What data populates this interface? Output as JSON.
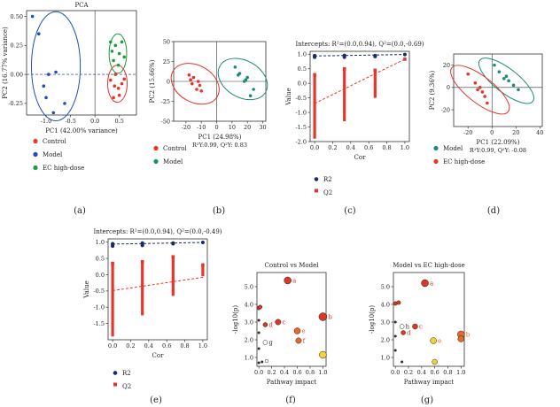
{
  "figure": {
    "panel_labels": [
      "(a)",
      "(b)",
      "(c)",
      "(d)",
      "(e)",
      "(f)",
      "(g)"
    ]
  },
  "colors": {
    "control": "#e8342a",
    "model_a": "#1f4fbf",
    "ec": "#1f9a3a",
    "model_teal": "#1e8a78",
    "r2": "#1a2a6e",
    "q2": "#e8342a",
    "node_orange": "#e86a2a",
    "node_yellow": "#f2d23c",
    "node_red": "#d83a24"
  },
  "chart_data": [
    {
      "panel": "a",
      "type": "scatter",
      "title": "PCA",
      "xlabel": "PC1 (42.00% variance)",
      "ylabel": "PC2 (16.77% variance)",
      "xlim": [
        -1.4,
        0.85
      ],
      "ylim": [
        -0.35,
        0.55
      ],
      "xticks": [
        -1.0,
        -0.5,
        0.0,
        0.5
      ],
      "xtick_labels": [
        "-1.0",
        "-0.5",
        "0.0",
        "0.5"
      ],
      "yticks": [
        -0.25,
        0.0,
        0.25,
        0.5
      ],
      "ytick_labels": [
        "-0.25",
        "0.00",
        "0.25",
        "0.50"
      ],
      "legend": [
        "Control",
        "Model",
        "EC high-dose"
      ],
      "series": [
        {
          "name": "Control",
          "color": "control",
          "points": [
            [
              0.32,
              -0.05
            ],
            [
              0.4,
              -0.1
            ],
            [
              0.48,
              -0.12
            ],
            [
              0.55,
              -0.08
            ],
            [
              0.38,
              -0.2
            ],
            [
              0.5,
              -0.18
            ],
            [
              0.6,
              -0.04
            ],
            [
              0.42,
              0.0
            ]
          ],
          "ellipse": {
            "cx": 0.46,
            "cy": -0.08,
            "rx": 0.2,
            "ry": 0.16
          }
        },
        {
          "name": "Model",
          "color": "model_a",
          "points": [
            [
              -1.28,
              0.5
            ],
            [
              -1.15,
              0.35
            ],
            [
              -0.8,
              0.02
            ],
            [
              -0.95,
              0.0
            ],
            [
              -1.0,
              -0.2
            ],
            [
              -0.62,
              -0.25
            ],
            [
              -1.05,
              -0.1
            ],
            [
              -0.85,
              -0.33
            ]
          ],
          "ellipse": {
            "cx": -0.8,
            "cy": 0.07,
            "rx": 0.5,
            "ry": 0.47
          }
        },
        {
          "name": "EC high-dose",
          "color": "ec",
          "points": [
            [
              0.35,
              0.2
            ],
            [
              0.42,
              0.25
            ],
            [
              0.5,
              0.18
            ],
            [
              0.55,
              0.28
            ],
            [
              0.38,
              0.12
            ],
            [
              0.6,
              0.15
            ],
            [
              0.48,
              0.08
            ],
            [
              0.32,
              0.28
            ]
          ],
          "ellipse": {
            "cx": 0.47,
            "cy": 0.18,
            "rx": 0.18,
            "ry": 0.17
          }
        }
      ]
    },
    {
      "panel": "b",
      "type": "scatter",
      "xlabel": "PC1 (24.98%)",
      "ylabel": "PC2 (15.66%)",
      "caption": "R²Y:0.99, Q²Y: 0.83",
      "xlim": [
        -28,
        32
      ],
      "ylim": [
        -50,
        50
      ],
      "xticks": [
        -20,
        -10,
        0,
        10,
        20,
        30
      ],
      "xtick_labels": [
        "-20",
        "-10",
        "0",
        "10",
        "20",
        "30"
      ],
      "yticks": [
        -50,
        -25,
        0,
        25,
        50
      ],
      "ytick_labels": [
        "-50",
        "-25",
        "0",
        "25",
        "50"
      ],
      "legend": [
        "Control",
        "Model"
      ],
      "series": [
        {
          "name": "Control",
          "color": "control",
          "points": [
            [
              -18,
              8
            ],
            [
              -15,
              5
            ],
            [
              -12,
              0
            ],
            [
              -16,
              -3
            ],
            [
              -13,
              -10
            ],
            [
              -10,
              -12
            ],
            [
              -17,
              2
            ],
            [
              -11,
              -5
            ]
          ],
          "ellipse": {
            "cx": -14,
            "cy": -3,
            "rx": 12,
            "ry": 32,
            "rot": -60
          }
        },
        {
          "name": "Model",
          "color": "model_teal",
          "points": [
            [
              12,
              18
            ],
            [
              15,
              10
            ],
            [
              20,
              5
            ],
            [
              18,
              0
            ],
            [
              24,
              -10
            ],
            [
              22,
              -18
            ],
            [
              14,
              8
            ],
            [
              19,
              2
            ]
          ],
          "ellipse": {
            "cx": 17,
            "cy": 3,
            "rx": 12,
            "ry": 33,
            "rot": -60
          }
        }
      ]
    },
    {
      "panel": "c",
      "type": "scatter",
      "title": "Intercepts: R²=(0.0,0.94), Q²=(0.0,-0.69)",
      "xlabel": "Cor",
      "ylabel": "Value",
      "xlim": [
        -0.05,
        1.05
      ],
      "ylim": [
        -2.0,
        1.1
      ],
      "xticks": [
        0.0,
        0.2,
        0.4,
        0.6,
        0.8,
        1.0
      ],
      "xtick_labels": [
        "0.0",
        "0.2",
        "0.4",
        "0.6",
        "0.8",
        "1.0"
      ],
      "yticks": [
        -2.0,
        -1.5,
        -1.0,
        -0.5,
        0.0,
        0.5,
        1.0
      ],
      "ytick_labels": [
        "-2.0",
        "-1.5",
        "-1.0",
        "-0.5",
        "0.0",
        "0.5",
        "1.0"
      ],
      "legend": [
        "R2",
        "Q2"
      ],
      "r2_columns": [
        {
          "x": 0.0,
          "values": [
            0.9,
            0.95,
            0.92
          ]
        },
        {
          "x": 0.33,
          "values": [
            0.9,
            0.94,
            0.96
          ]
        },
        {
          "x": 0.67,
          "values": [
            0.92,
            0.95
          ]
        },
        {
          "x": 1.0,
          "values": [
            0.99
          ]
        }
      ],
      "q2_columns": [
        {
          "x": 0.0,
          "min": -1.9,
          "max": 0.3
        },
        {
          "x": 0.33,
          "min": -1.3,
          "max": 0.5
        },
        {
          "x": 0.67,
          "min": -0.5,
          "max": 0.45
        },
        {
          "x": 1.0,
          "min": 0.83,
          "max": 0.83
        }
      ],
      "r2_line": [
        [
          0.0,
          0.94
        ],
        [
          1.0,
          0.99
        ]
      ],
      "q2_line": [
        [
          0.0,
          -0.69
        ],
        [
          1.0,
          0.83
        ]
      ]
    },
    {
      "panel": "d",
      "type": "scatter",
      "xlabel": "PC1 (22.09%)",
      "ylabel": "PC2 (9.36%)",
      "caption": "R²Y:0.99, Q²Y: -0.08",
      "xlim": [
        -32,
        42
      ],
      "ylim": [
        -35,
        30
      ],
      "xticks": [
        -20,
        0,
        20,
        40
      ],
      "xtick_labels": [
        "-20",
        "0",
        "20",
        "40"
      ],
      "yticks": [
        -20,
        0,
        20
      ],
      "ytick_labels": [
        "-20",
        "0",
        "20"
      ],
      "legend": [
        "Model",
        "EC high-dose"
      ],
      "series": [
        {
          "name": "Model",
          "color": "model_teal",
          "points": [
            [
              2,
              20
            ],
            [
              6,
              14
            ],
            [
              10,
              8
            ],
            [
              14,
              6
            ],
            [
              18,
              2
            ],
            [
              22,
              -2
            ],
            [
              12,
              10
            ]
          ],
          "ellipse": {
            "cx": 12,
            "cy": 6,
            "rx": 10,
            "ry": 30,
            "rot": -52
          }
        },
        {
          "name": "EC high-dose",
          "color": "control",
          "points": [
            [
              -20,
              12
            ],
            [
              -14,
              4
            ],
            [
              -10,
              0
            ],
            [
              -8,
              -4
            ],
            [
              -6,
              -8
            ],
            [
              -12,
              -2
            ],
            [
              -4,
              -14
            ]
          ],
          "ellipse": {
            "cx": -10,
            "cy": -2,
            "rx": 11,
            "ry": 32,
            "rot": -52
          }
        }
      ]
    },
    {
      "panel": "e",
      "type": "scatter",
      "title": "Intercepts: R²=(0.0,0.94), Q²=(0.0,-0.49)",
      "xlabel": "Cor",
      "ylabel": "Value",
      "xlim": [
        -0.05,
        1.05
      ],
      "ylim": [
        -2.0,
        1.1
      ],
      "xticks": [
        0.0,
        0.2,
        0.4,
        0.6,
        0.8,
        1.0
      ],
      "xtick_labels": [
        "0.0",
        "0.2",
        "0.4",
        "0.6",
        "0.8",
        "1.0"
      ],
      "yticks": [
        -1.5,
        -1.0,
        -0.5,
        0.0,
        0.5,
        1.0
      ],
      "ytick_labels": [
        "-1.5",
        "-1.0",
        "-0.5",
        "0.0",
        "0.5",
        "1.0"
      ],
      "legend": [
        "R2",
        "Q2"
      ],
      "r2_columns": [
        {
          "x": 0.0,
          "values": [
            0.88,
            0.95,
            0.92
          ]
        },
        {
          "x": 0.33,
          "values": [
            0.9,
            0.94,
            0.97
          ]
        },
        {
          "x": 0.67,
          "values": [
            0.95,
            0.97
          ]
        },
        {
          "x": 1.0,
          "values": [
            0.99
          ]
        }
      ],
      "q2_columns": [
        {
          "x": 0.0,
          "min": -1.9,
          "max": 0.35
        },
        {
          "x": 0.33,
          "min": -1.25,
          "max": 0.4
        },
        {
          "x": 0.67,
          "min": -0.65,
          "max": 0.55
        },
        {
          "x": 1.0,
          "min": -0.05,
          "max": 0.3
        }
      ],
      "r2_line": [
        [
          0.0,
          0.94
        ],
        [
          1.0,
          0.99
        ]
      ],
      "q2_line": [
        [
          0.0,
          -0.49
        ],
        [
          1.0,
          -0.08
        ]
      ]
    },
    {
      "panel": "f",
      "type": "scatter",
      "title": "Control vs Model",
      "xlabel": "Pathway impact",
      "ylabel": "-log10(p)",
      "xlim": [
        -0.03,
        1.05
      ],
      "ylim": [
        0.5,
        5.8
      ],
      "xticks": [
        0.0,
        0.2,
        0.4,
        0.6,
        0.8,
        1.0
      ],
      "xtick_labels": [
        "0.0",
        "0.2",
        "0.4",
        "0.6",
        "0.8",
        "1.0"
      ],
      "yticks": [
        1.0,
        2.0,
        3.0,
        4.0,
        5.0
      ],
      "ytick_labels": [
        "1.0",
        "2.0",
        "3.0",
        "4.0",
        "5.0"
      ],
      "points": [
        {
          "x": 0.45,
          "y": 5.35,
          "r": 4,
          "fill": "node_red",
          "label": "a"
        },
        {
          "x": 1.0,
          "y": 3.3,
          "r": 4.5,
          "fill": "node_red",
          "label": "b"
        },
        {
          "x": 0.3,
          "y": 3.0,
          "r": 3.2,
          "fill": "node_red",
          "label": "c"
        },
        {
          "x": 0.1,
          "y": 2.85,
          "r": 2.5,
          "fill": "node_red",
          "label": "d"
        },
        {
          "x": 0.6,
          "y": 2.5,
          "r": 3.5,
          "fill": "node_orange",
          "label": "e"
        },
        {
          "x": 0.62,
          "y": 1.95,
          "r": 3.2,
          "fill": "node_orange",
          "label": "f"
        },
        {
          "x": 0.1,
          "y": 1.85,
          "r": 2.5,
          "fill": "#ffffff",
          "label": "g"
        },
        {
          "x": 1.0,
          "y": 1.15,
          "r": 4,
          "fill": "node_yellow",
          "label": ""
        },
        {
          "x": 0.0,
          "y": 3.8,
          "r": 2.2,
          "fill": "node_red",
          "label": ""
        },
        {
          "x": 0.02,
          "y": 3.85,
          "r": 2.2,
          "fill": "node_red",
          "label": ""
        },
        {
          "x": 0.0,
          "y": 3.1,
          "r": 1.3,
          "fill": "#333333",
          "label": ""
        },
        {
          "x": 0.0,
          "y": 2.4,
          "r": 1.3,
          "fill": "#333333",
          "label": ""
        },
        {
          "x": 0.0,
          "y": 1.5,
          "r": 1.3,
          "fill": "#333333",
          "label": ""
        },
        {
          "x": 0.0,
          "y": 0.7,
          "r": 1.3,
          "fill": "#333333",
          "label": ""
        },
        {
          "x": 0.05,
          "y": 0.75,
          "r": 1.3,
          "fill": "#333333",
          "label": ""
        },
        {
          "x": 0.12,
          "y": 0.8,
          "r": 1.8,
          "fill": "#ffffff",
          "label": ""
        }
      ]
    },
    {
      "panel": "g",
      "type": "scatter",
      "title": "Model vs EC high-dose",
      "xlabel": "Pathway impact",
      "ylabel": "-log10(p)",
      "xlim": [
        -0.03,
        1.05
      ],
      "ylim": [
        0.5,
        5.8
      ],
      "xticks": [
        0.0,
        0.2,
        0.4,
        0.6,
        0.8,
        1.0
      ],
      "xtick_labels": [
        "0.0",
        "0.2",
        "0.4",
        "0.6",
        "0.8",
        "1.0"
      ],
      "yticks": [
        1.0,
        2.0,
        3.0,
        4.0,
        5.0
      ],
      "ytick_labels": [
        "1.0",
        "2.0",
        "3.0",
        "4.0",
        "5.0"
      ],
      "points": [
        {
          "x": 0.45,
          "y": 5.2,
          "r": 4,
          "fill": "node_red",
          "label": "a"
        },
        {
          "x": 1.0,
          "y": 2.3,
          "r": 4,
          "fill": "node_orange",
          "label": "b"
        },
        {
          "x": 0.3,
          "y": 2.75,
          "r": 3,
          "fill": "node_red",
          "label": "c"
        },
        {
          "x": 0.12,
          "y": 2.4,
          "r": 2.5,
          "fill": "node_red",
          "label": "d"
        },
        {
          "x": 0.58,
          "y": 1.95,
          "r": 3.5,
          "fill": "node_yellow",
          "label": "e"
        },
        {
          "x": 0.1,
          "y": 2.75,
          "r": 2.5,
          "fill": "#ffffff",
          "label": "h"
        },
        {
          "x": 1.0,
          "y": 2.05,
          "r": 3.5,
          "fill": "node_orange",
          "label": ""
        },
        {
          "x": 0.0,
          "y": 4.05,
          "r": 2.2,
          "fill": "node_red",
          "label": ""
        },
        {
          "x": 0.05,
          "y": 4.1,
          "r": 2.2,
          "fill": "node_red",
          "label": ""
        },
        {
          "x": 0.0,
          "y": 3.0,
          "r": 1.3,
          "fill": "#333333",
          "label": ""
        },
        {
          "x": 0.0,
          "y": 2.2,
          "r": 1.3,
          "fill": "#333333",
          "label": ""
        },
        {
          "x": 0.0,
          "y": 1.4,
          "r": 1.3,
          "fill": "#333333",
          "label": ""
        },
        {
          "x": 0.1,
          "y": 0.75,
          "r": 1.3,
          "fill": "#333333",
          "label": ""
        },
        {
          "x": 0.6,
          "y": 0.75,
          "r": 3,
          "fill": "node_yellow",
          "label": ""
        }
      ]
    }
  ]
}
